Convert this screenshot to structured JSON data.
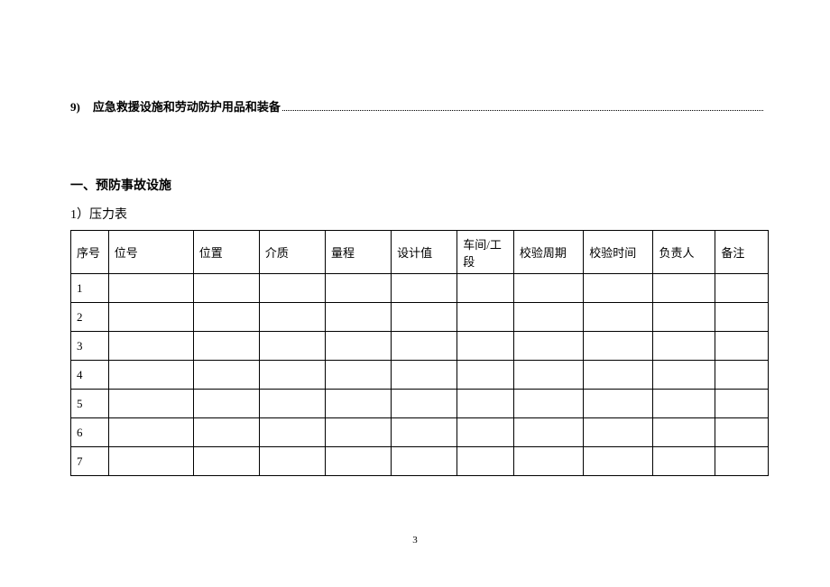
{
  "toc": {
    "num": "9)",
    "text": "应急救援设施和劳动防护用品和装备"
  },
  "section": {
    "h1": "一、预防事故设施",
    "h2": "1）压力表"
  },
  "table": {
    "headers": [
      "序号",
      "位号",
      "位置",
      "介质",
      "量程",
      "设计值",
      "车间/工段",
      "校验周期",
      "校验时间",
      "负责人",
      "备注"
    ],
    "rows": [
      "1",
      "2",
      "3",
      "4",
      "5",
      "6",
      "7"
    ]
  },
  "pageNumber": "3",
  "style": {
    "font_family": "SimSun",
    "text_color": "#000000",
    "background": "#ffffff",
    "border_color": "#000000",
    "header_fontsize": 13,
    "body_fontsize": 13
  }
}
